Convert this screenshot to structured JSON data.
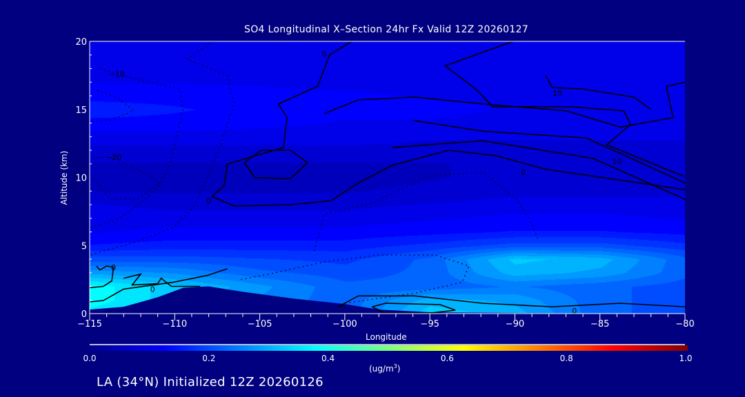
{
  "chart_data": {
    "type": "heatmap",
    "subtype": "filled-contour cross-section",
    "title": "SO4 Longitudinal X–Section 24hr  Fx Valid 12Z 20260127",
    "xlabel": "Longitude",
    "ylabel": "Altitude (km)",
    "xlim": [
      -115,
      -80
    ],
    "ylim": [
      0,
      20
    ],
    "xticks": [
      -115,
      -110,
      -105,
      -100,
      -95,
      -90,
      -85,
      -80
    ],
    "xtick_labels": [
      "−115",
      "−110",
      "−105",
      "−100",
      "−95",
      "−90",
      "−85",
      "−80"
    ],
    "yticks": [
      0,
      5,
      10,
      15,
      20
    ],
    "ytick_labels": [
      "0",
      "5",
      "10",
      "15",
      "20"
    ],
    "colorbar": {
      "range": [
        0,
        1
      ],
      "tick_labels": [
        "0.0",
        "0.2",
        "0.4",
        "0.6",
        "0.8",
        "1.0"
      ],
      "units_main": "(ug/m",
      "units_sup": "3",
      "units_close": ")",
      "colormap": [
        "#00008f",
        "#0000ff",
        "#00ffff",
        "#ffff00",
        "#ff0000",
        "#800000"
      ]
    },
    "grid_lon": [
      -115,
      -110,
      -105,
      -100,
      -95,
      -90,
      -85,
      -80
    ],
    "grid_alt": [
      0,
      1,
      2,
      3,
      4,
      5,
      6,
      7,
      8,
      9,
      10,
      11,
      12,
      13,
      14,
      15,
      16,
      17,
      18,
      19,
      20
    ],
    "values": [
      [
        0.35,
        0.3,
        0.25,
        0.22,
        0.33,
        0.3,
        0.22,
        0.2
      ],
      [
        0.38,
        0.32,
        0.26,
        0.22,
        0.3,
        0.28,
        0.22,
        0.2
      ],
      [
        0.38,
        0.32,
        0.27,
        0.22,
        0.22,
        0.24,
        0.22,
        0.2
      ],
      [
        0.28,
        0.26,
        0.22,
        0.2,
        0.22,
        0.3,
        0.28,
        0.22
      ],
      [
        0.2,
        0.2,
        0.19,
        0.18,
        0.22,
        0.32,
        0.3,
        0.22
      ],
      [
        0.14,
        0.15,
        0.15,
        0.15,
        0.17,
        0.2,
        0.2,
        0.17
      ],
      [
        0.11,
        0.12,
        0.12,
        0.12,
        0.13,
        0.14,
        0.14,
        0.13
      ],
      [
        0.1,
        0.1,
        0.1,
        0.1,
        0.11,
        0.12,
        0.12,
        0.11
      ],
      [
        0.09,
        0.08,
        0.08,
        0.08,
        0.09,
        0.1,
        0.1,
        0.1
      ],
      [
        0.06,
        0.06,
        0.06,
        0.06,
        0.07,
        0.08,
        0.08,
        0.08
      ],
      [
        0.05,
        0.05,
        0.05,
        0.05,
        0.06,
        0.07,
        0.07,
        0.07
      ],
      [
        0.06,
        0.06,
        0.06,
        0.06,
        0.06,
        0.07,
        0.07,
        0.07
      ],
      [
        0.08,
        0.08,
        0.08,
        0.08,
        0.08,
        0.08,
        0.08,
        0.08
      ],
      [
        0.1,
        0.1,
        0.1,
        0.1,
        0.09,
        0.09,
        0.09,
        0.09
      ],
      [
        0.13,
        0.13,
        0.12,
        0.11,
        0.11,
        0.1,
        0.1,
        0.1
      ],
      [
        0.15,
        0.14,
        0.13,
        0.12,
        0.12,
        0.11,
        0.11,
        0.11
      ],
      [
        0.13,
        0.13,
        0.12,
        0.12,
        0.11,
        0.11,
        0.1,
        0.1
      ],
      [
        0.11,
        0.11,
        0.11,
        0.1,
        0.1,
        0.1,
        0.1,
        0.1
      ],
      [
        0.1,
        0.1,
        0.1,
        0.09,
        0.09,
        0.09,
        0.09,
        0.09
      ],
      [
        0.09,
        0.09,
        0.09,
        0.09,
        0.09,
        0.09,
        0.09,
        0.09
      ],
      [
        0.09,
        0.09,
        0.09,
        0.09,
        0.09,
        0.09,
        0.09,
        0.09
      ]
    ],
    "terrain": [
      [
        -115,
        0.3
      ],
      [
        -113,
        0.5
      ],
      [
        -111,
        1.2
      ],
      [
        -109.5,
        1.9
      ],
      [
        -108,
        2.0
      ],
      [
        -106,
        1.6
      ],
      [
        -103,
        1.1
      ],
      [
        -100,
        0.7
      ],
      [
        -98,
        0.3
      ],
      [
        -95,
        0.1
      ],
      [
        -90,
        0.05
      ],
      [
        -80,
        0.0
      ]
    ],
    "contours": [
      {
        "style": "solid",
        "label": "0",
        "label_at": [
          -108,
          8.3
        ],
        "points": [
          [
            -99.6,
            20
          ],
          [
            -100.9,
            19.0
          ],
          [
            -101.2,
            18.0
          ],
          [
            -101.6,
            16.7
          ],
          [
            -103.9,
            15.4
          ],
          [
            -103.4,
            14.4
          ],
          [
            -103.6,
            12.2
          ],
          [
            -106.9,
            11.0
          ],
          [
            -107.1,
            9.4
          ],
          [
            -107.8,
            8.6
          ],
          [
            -106.5,
            7.9
          ],
          [
            -103.2,
            8.0
          ],
          [
            -100.8,
            8.3
          ],
          [
            -99.2,
            9.6
          ],
          [
            -97.2,
            10.9
          ],
          [
            -93.9,
            12.0
          ],
          [
            -91.1,
            11.6
          ],
          [
            -88.2,
            10.6
          ],
          [
            -85.4,
            10.1
          ],
          [
            -80,
            9.1
          ]
        ]
      },
      {
        "style": "solid",
        "label": "0",
        "label_at": [
          -101.2,
          19.1
        ],
        "points": []
      },
      {
        "style": "solid",
        "label": "10",
        "label_at": [
          -87.5,
          16.2
        ],
        "points": [
          [
            -90.1,
            20
          ],
          [
            -94.1,
            18.2
          ],
          [
            -92.3,
            16.5
          ],
          [
            -91.3,
            15.2
          ],
          [
            -86.8,
            15.2
          ],
          [
            -83.6,
            14.9
          ],
          [
            -83.2,
            13.9
          ],
          [
            -84.6,
            12.4
          ],
          [
            -80.1,
            10.1
          ]
        ]
      },
      {
        "style": "solid",
        "label": "",
        "label_at": null,
        "points": [
          [
            -101.2,
            14.7
          ],
          [
            -99.2,
            15.7
          ],
          [
            -95.9,
            15.9
          ],
          [
            -91.9,
            15.4
          ],
          [
            -87.0,
            14.9
          ],
          [
            -83.8,
            13.7
          ],
          [
            -80.7,
            14.4
          ],
          [
            -81.1,
            16.7
          ],
          [
            -80,
            17.0
          ]
        ]
      },
      {
        "style": "solid",
        "label": "",
        "label_at": null,
        "points": [
          [
            -88.2,
            17.5
          ],
          [
            -87.8,
            16.6
          ],
          [
            -86,
            16.5
          ],
          [
            -83,
            15.9
          ],
          [
            -82,
            15.0
          ]
        ]
      },
      {
        "style": "solid",
        "label": "0",
        "label_at": [
          -89.5,
          10.4
        ],
        "points": [
          [
            -96.0,
            14.2
          ],
          [
            -91.9,
            13.4
          ],
          [
            -85.8,
            12.9
          ],
          [
            -80,
            9.6
          ]
        ]
      },
      {
        "style": "solid",
        "label": "10",
        "label_at": [
          -84,
          11.2
        ],
        "points": [
          [
            -97.2,
            12.2
          ],
          [
            -91.9,
            12.7
          ],
          [
            -85.4,
            11.4
          ],
          [
            -80,
            8.4
          ]
        ]
      },
      {
        "style": "solid",
        "label": "",
        "label_at": null,
        "points": [
          [
            -105.9,
            11.1
          ],
          [
            -104.9,
            12.0
          ],
          [
            -103.2,
            12.0
          ],
          [
            -102.2,
            11.1
          ],
          [
            -103.2,
            9.9
          ],
          [
            -105.3,
            10.0
          ],
          [
            -105.9,
            11.1
          ]
        ]
      },
      {
        "style": "dotted",
        "label": "−10",
        "label_at": [
          -113.4,
          17.6
        ],
        "points": [
          [
            -114.4,
            18.0
          ],
          [
            -113.4,
            17.6
          ],
          [
            -112.2,
            17.2
          ],
          [
            -109.7,
            16.5
          ],
          [
            -109.5,
            15.0
          ],
          [
            -109.9,
            12.9
          ],
          [
            -110.3,
            10.9
          ],
          [
            -110.9,
            9.4
          ],
          [
            -112.2,
            7.9
          ],
          [
            -113.4,
            6.9
          ],
          [
            -115,
            6.3
          ]
        ]
      },
      {
        "style": "dotted",
        "label": "",
        "label_at": null,
        "points": [
          [
            -107.7,
            20
          ],
          [
            -109.3,
            18.7
          ],
          [
            -106.9,
            17.5
          ],
          [
            -106.5,
            15.4
          ],
          [
            -107.3,
            12.4
          ],
          [
            -108.1,
            9.9
          ],
          [
            -108.9,
            7.8
          ],
          [
            -110.1,
            6.3
          ],
          [
            -112.2,
            5.3
          ],
          [
            -115,
            4.3
          ]
        ]
      },
      {
        "style": "dotted",
        "label": "−20",
        "label_at": [
          -113.6,
          11.5
        ],
        "points": [
          [
            -114.8,
            11.4
          ],
          [
            -113.8,
            11.5
          ],
          [
            -112.2,
            10.6
          ],
          [
            -110.9,
            9.6
          ],
          [
            -112.2,
            8.4
          ],
          [
            -113.8,
            8.4
          ],
          [
            -114.8,
            9.9
          ]
        ]
      },
      {
        "style": "dotted",
        "label": "",
        "label_at": null,
        "points": [
          [
            -114.8,
            16.5
          ],
          [
            -113.4,
            15.9
          ],
          [
            -112.4,
            14.9
          ],
          [
            -113.8,
            14.2
          ],
          [
            -115,
            14.1
          ]
        ]
      },
      {
        "style": "dotted",
        "label": "",
        "label_at": null,
        "points": [
          [
            -101.8,
            4.6
          ],
          [
            -101.2,
            7.3
          ],
          [
            -98.4,
            8.1
          ],
          [
            -95.1,
            10.1
          ],
          [
            -91.9,
            10.4
          ],
          [
            -89.9,
            8.4
          ],
          [
            -89.0,
            6.6
          ],
          [
            -88.6,
            5.3
          ]
        ]
      },
      {
        "style": "dotted",
        "label": "",
        "label_at": null,
        "points": [
          [
            -106.1,
            2.5
          ],
          [
            -104.1,
            3.0
          ],
          [
            -101.2,
            3.8
          ],
          [
            -98.0,
            4.3
          ],
          [
            -94.7,
            4.3
          ],
          [
            -92.7,
            3.5
          ],
          [
            -93.1,
            2.3
          ],
          [
            -95.9,
            1.5
          ],
          [
            -100.0,
            0.76
          ]
        ]
      },
      {
        "style": "solid",
        "label": "0",
        "label_at": [
          -113.6,
          3.4
        ],
        "points": [
          [
            -115,
            1.9
          ],
          [
            -114.2,
            2.0
          ],
          [
            -113.7,
            2.4
          ],
          [
            -113.6,
            3.4
          ],
          [
            -114.0,
            3.5
          ],
          [
            -114.4,
            3.2
          ],
          [
            -114.6,
            3.5
          ]
        ]
      },
      {
        "style": "solid",
        "label": "0",
        "label_at": [
          -111.3,
          1.8
        ],
        "points": [
          [
            -115,
            0.86
          ],
          [
            -114.2,
            0.96
          ],
          [
            -113.0,
            1.8
          ],
          [
            -110.1,
            2.3
          ],
          [
            -108.1,
            2.8
          ],
          [
            -106.9,
            3.3
          ]
        ]
      },
      {
        "style": "solid",
        "label": "",
        "label_at": null,
        "points": [
          [
            -113.0,
            2.6
          ],
          [
            -112.0,
            2.9
          ],
          [
            -112.5,
            2.1
          ],
          [
            -111,
            2.2
          ],
          [
            -110.8,
            2.6
          ],
          [
            -110.2,
            2.0
          ],
          [
            -108.5,
            2.0
          ]
        ]
      },
      {
        "style": "solid",
        "label": "",
        "label_at": null,
        "points": [
          [
            -98.4,
            0.5
          ],
          [
            -97.6,
            0.76
          ],
          [
            -94.4,
            0.66
          ],
          [
            -93.5,
            0.25
          ],
          [
            -95.1,
            0.02
          ],
          [
            -97.6,
            0.02
          ],
          [
            -98.4,
            0.5
          ]
        ]
      },
      {
        "style": "solid",
        "label": "0",
        "label_at": [
          -86.5,
          0.2
        ],
        "points": [
          [
            -100.4,
            0.5
          ],
          [
            -99.2,
            1.3
          ],
          [
            -95.9,
            1.3
          ],
          [
            -91.9,
            0.76
          ],
          [
            -87.8,
            0.5
          ],
          [
            -83.8,
            0.76
          ],
          [
            -80,
            0.5
          ]
        ]
      }
    ]
  },
  "footer": "LA (34°N) Initialized 12Z 20260126"
}
